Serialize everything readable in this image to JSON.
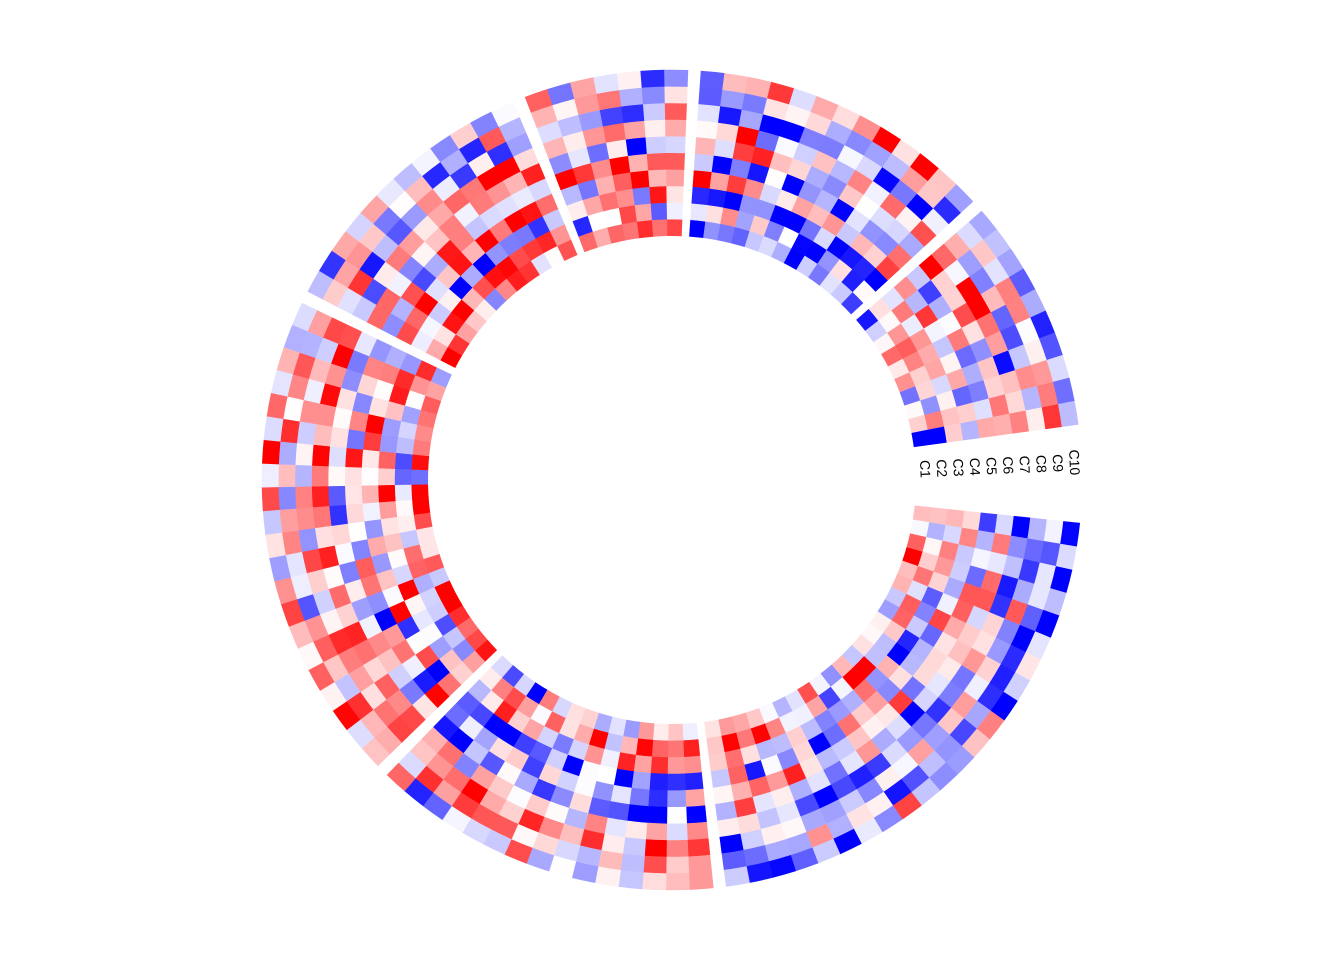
{
  "chart_data": {
    "type": "heatmap",
    "layout": "circular",
    "title": "",
    "track_labels": [
      "C1",
      "C2",
      "C3",
      "C4",
      "C5",
      "C6",
      "C7",
      "C8",
      "C9",
      "C10"
    ],
    "sector_widths": [
      23,
      15,
      21,
      12,
      7,
      13,
      10
    ],
    "colors": {
      "low": "#0000ff",
      "mid": "#ffffff",
      "high": "#ff0000"
    },
    "value_range": [
      -2,
      2
    ],
    "legend": "none",
    "seed": 20240611
  }
}
